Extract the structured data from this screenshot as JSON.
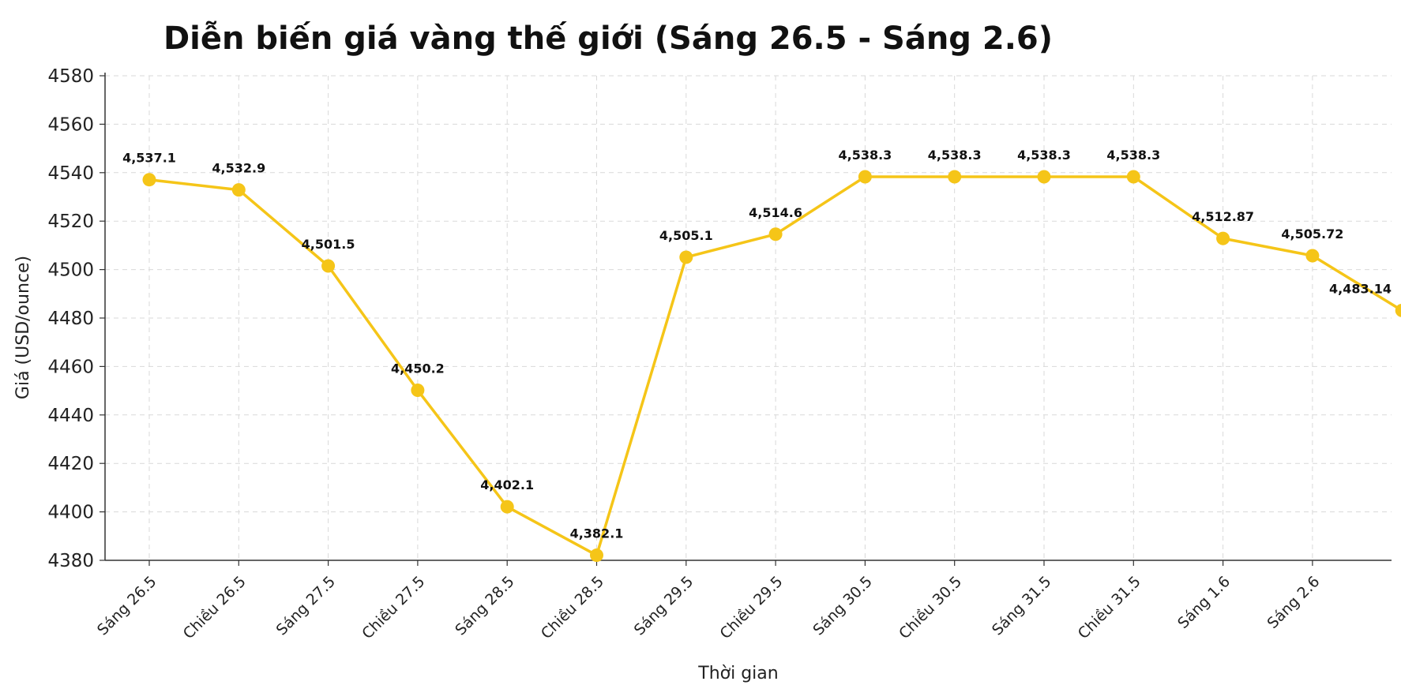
{
  "chart_data": {
    "type": "line",
    "title": "Diễn biến giá vàng thế giới (Sáng 26.5 - Sáng 2.6)",
    "xlabel": "Thời gian",
    "ylabel": "Giá (USD/ounce)",
    "ylim": [
      4380,
      4580
    ],
    "yticks": [
      4380,
      4400,
      4420,
      4440,
      4460,
      4480,
      4500,
      4520,
      4540,
      4560,
      4580
    ],
    "grid": true,
    "categories": [
      "Sáng 26.5",
      "Chiều 26.5",
      "Sáng 27.5",
      "Chiều 27.5",
      "Sáng 28.5",
      "Chiều 28.5",
      "Sáng 29.5",
      "Chiều 29.5",
      "Sáng 30.5",
      "Chiều 30.5",
      "Sáng 31.5",
      "Chiều 31.5",
      "Sáng 1.6",
      "Sáng 2.6",
      ""
    ],
    "series": [
      {
        "color": "#F5C518",
        "values": [
          4537.1,
          4532.9,
          4501.5,
          4450.2,
          4402.1,
          4382.1,
          4505.1,
          4514.6,
          4538.3,
          4538.3,
          4538.3,
          4538.3,
          4512.87,
          4505.72,
          4483.14
        ],
        "labels": [
          "4,537.1",
          "4,532.9",
          "4,501.5",
          "4,450.2",
          "4,402.1",
          "4,382.1",
          "4,505.1",
          "4,514.6",
          "4,538.3",
          "4,538.3",
          "4,538.3",
          "4,538.3",
          "4,512.87",
          "4,505.72",
          "4,483.14"
        ]
      }
    ]
  }
}
